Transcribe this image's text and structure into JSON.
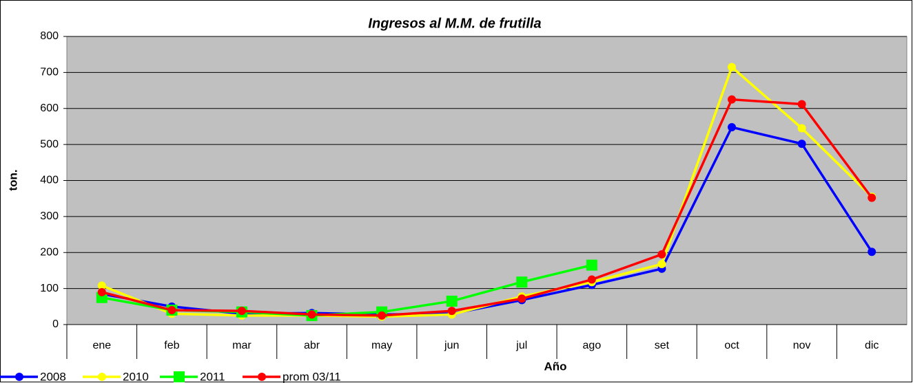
{
  "chart_data": {
    "type": "line",
    "title": "Ingresos al M.M. de frutilla",
    "x_label": "Año",
    "y_label": "ton.",
    "categories": [
      "ene",
      "feb",
      "mar",
      "abr",
      "may",
      "jun",
      "jul",
      "ago",
      "set",
      "oct",
      "nov",
      "dic"
    ],
    "series": [
      {
        "name": "2008",
        "color": "#0000ff",
        "marker": "circle",
        "values": [
          85,
          50,
          30,
          32,
          28,
          30,
          68,
          110,
          155,
          548,
          502,
          202
        ]
      },
      {
        "name": "2010",
        "color": "#ffff00",
        "marker": "circle",
        "values": [
          108,
          30,
          25,
          25,
          22,
          28,
          78,
          118,
          168,
          715,
          545,
          355
        ]
      },
      {
        "name": "2011",
        "color": "#00ff00",
        "marker": "square",
        "values": [
          75,
          40,
          35,
          25,
          35,
          65,
          118,
          165,
          null,
          null,
          null,
          null
        ]
      },
      {
        "name": "prom 03/11",
        "color": "#ff0000",
        "marker": "circle",
        "values": [
          90,
          40,
          38,
          28,
          25,
          38,
          72,
          125,
          195,
          625,
          612,
          352
        ]
      }
    ],
    "ylim": [
      0,
      800
    ],
    "yticks": [
      0,
      100,
      200,
      300,
      400,
      500,
      600,
      700,
      800
    ],
    "grid": true,
    "legend": "bottom-left"
  }
}
